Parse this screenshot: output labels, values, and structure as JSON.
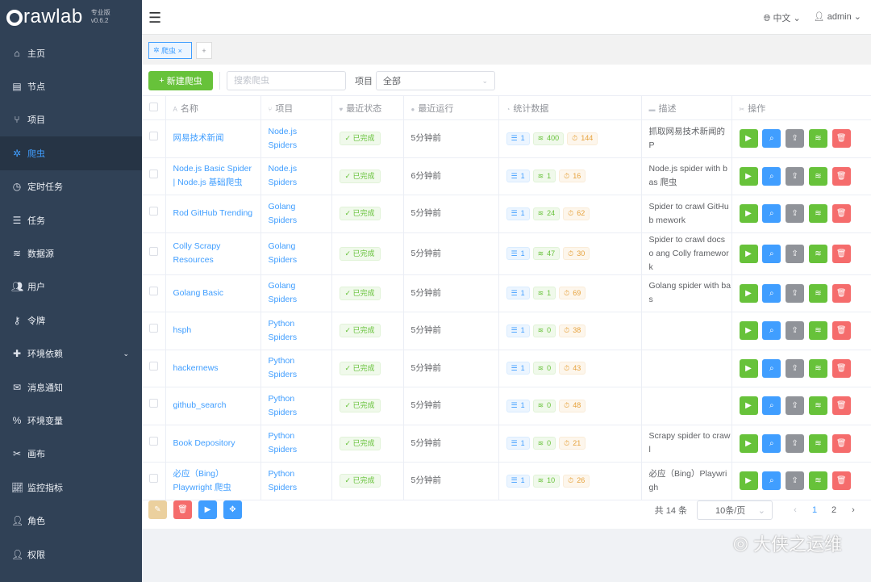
{
  "app": {
    "logo_text": "Crawlab",
    "edition": "专业版",
    "version": "v0.6.2"
  },
  "sidebar": {
    "items": [
      {
        "label": "主页",
        "icon": "home-icon"
      },
      {
        "label": "节点",
        "icon": "server-icon"
      },
      {
        "label": "项目",
        "icon": "project-icon"
      },
      {
        "label": "爬虫",
        "icon": "spider-icon",
        "active": true
      },
      {
        "label": "定时任务",
        "icon": "clock-icon"
      },
      {
        "label": "任务",
        "icon": "tasks-icon"
      },
      {
        "label": "数据源",
        "icon": "database-icon"
      },
      {
        "label": "用户",
        "icon": "users-icon"
      },
      {
        "label": "令牌",
        "icon": "key-icon"
      },
      {
        "label": "环境依赖",
        "icon": "puzzle-icon"
      },
      {
        "label": "消息通知",
        "icon": "envelope-icon"
      },
      {
        "label": "环境变量",
        "icon": "percent-icon"
      },
      {
        "label": "画布",
        "icon": "tools-icon"
      },
      {
        "label": "监控指标",
        "icon": "chart-icon"
      },
      {
        "label": "角色",
        "icon": "user-role-icon"
      },
      {
        "label": "权限",
        "icon": "user-lock-icon"
      }
    ]
  },
  "header": {
    "language": "中文",
    "user": "admin"
  },
  "tabs": [
    {
      "label": "爬虫",
      "closable": true
    }
  ],
  "toolbar": {
    "new_label": "新建爬虫",
    "search_placeholder": "搜索爬虫",
    "search_value": "",
    "project_label": "项目",
    "project_value": "全部"
  },
  "table": {
    "columns": [
      "名称",
      "项目",
      "最近状态",
      "最近运行",
      "统计数据",
      "描述",
      "操作"
    ],
    "rows": [
      {
        "name": "网易技术新闻",
        "project": "Node.js Spiders",
        "status": "已完成",
        "last_run": "5分钟前",
        "tasks": "1",
        "results": "400",
        "duration": "144",
        "desc": "抓取网易技术新闻的 P"
      },
      {
        "name": "Node.js Basic Spider | Node.js 基础爬虫",
        "project": "Node.js Spiders",
        "status": "已完成",
        "last_run": "6分钟前",
        "tasks": "1",
        "results": "1",
        "duration": "16",
        "desc": "Node.js spider with bas 爬虫"
      },
      {
        "name": "Rod GitHub Trending",
        "project": "Golang Spiders",
        "status": "已完成",
        "last_run": "5分钟前",
        "tasks": "1",
        "results": "24",
        "duration": "62",
        "desc": "Spider to crawl GitHub mework"
      },
      {
        "name": "Colly Scrapy Resources",
        "project": "Golang Spiders",
        "status": "已完成",
        "last_run": "5分钟前",
        "tasks": "1",
        "results": "47",
        "duration": "30",
        "desc": "Spider to crawl docs o ang Colly framework"
      },
      {
        "name": "Golang Basic",
        "project": "Golang Spiders",
        "status": "已完成",
        "last_run": "5分钟前",
        "tasks": "1",
        "results": "1",
        "duration": "69",
        "desc": "Golang spider with bas"
      },
      {
        "name": "hsph",
        "project": "Python Spiders",
        "status": "已完成",
        "last_run": "5分钟前",
        "tasks": "1",
        "results": "0",
        "duration": "38",
        "desc": ""
      },
      {
        "name": "hackernews",
        "project": "Python Spiders",
        "status": "已完成",
        "last_run": "5分钟前",
        "tasks": "1",
        "results": "0",
        "duration": "43",
        "desc": ""
      },
      {
        "name": "github_search",
        "project": "Python Spiders",
        "status": "已完成",
        "last_run": "5分钟前",
        "tasks": "1",
        "results": "0",
        "duration": "48",
        "desc": ""
      },
      {
        "name": "Book Depository",
        "project": "Python Spiders",
        "status": "已完成",
        "last_run": "5分钟前",
        "tasks": "1",
        "results": "0",
        "duration": "21",
        "desc": "Scrapy spider to crawl"
      },
      {
        "name": "必应（Bing）Playwright 爬虫",
        "project": "Python Spiders",
        "status": "已完成",
        "last_run": "5分钟前",
        "tasks": "1",
        "results": "10",
        "duration": "26",
        "desc": "必应（Bing）Playwrigh"
      }
    ]
  },
  "pagination": {
    "total": "共 14 条",
    "page_size": "10条/页",
    "pages": [
      "1",
      "2"
    ],
    "current": "1"
  },
  "watermark": "大侠之运维",
  "colors": {
    "sidebar": "#304156",
    "primary": "#409eff",
    "success": "#67c23a",
    "danger": "#f56c6c",
    "warning": "#e6a23c"
  }
}
